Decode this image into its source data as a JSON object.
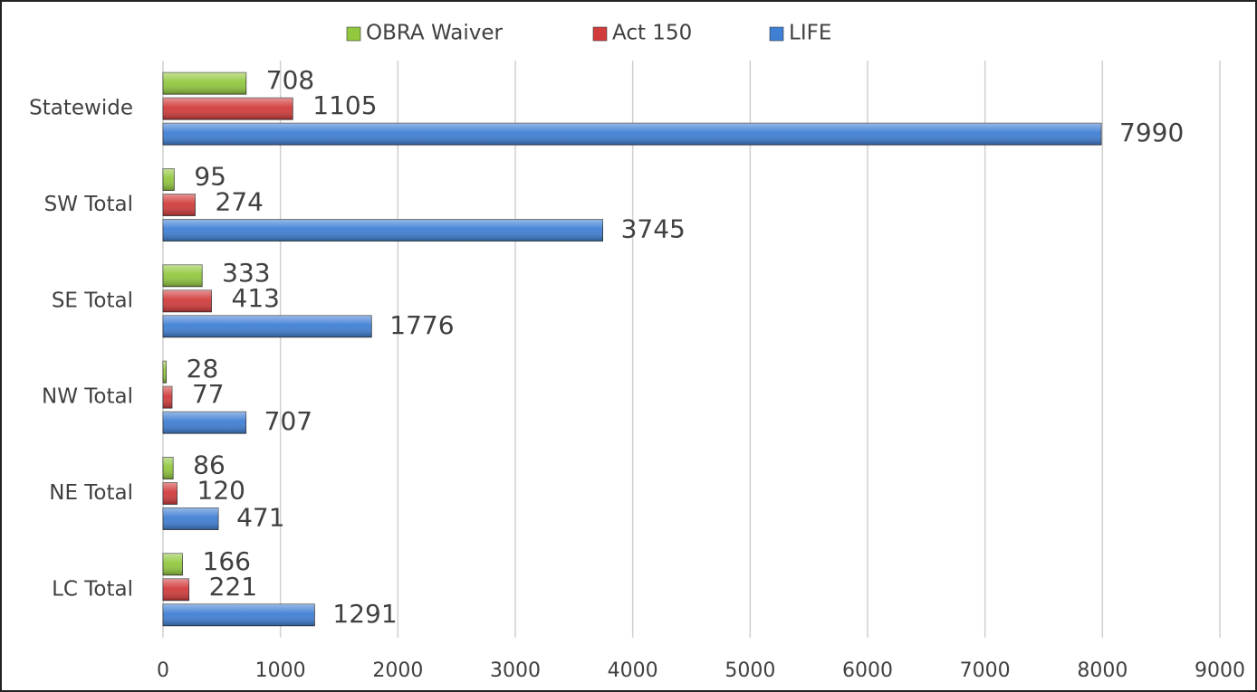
{
  "chart_data": {
    "type": "hbar",
    "categories": [
      "Statewide",
      "SW Total",
      "SE Total",
      "NW Total",
      "NE Total",
      "LC Total"
    ],
    "series": [
      {
        "name": "OBRA Waiver",
        "color": "#92c83e",
        "values": [
          708,
          95,
          333,
          28,
          86,
          166
        ]
      },
      {
        "name": "Act 150",
        "color": "#d23b3b",
        "values": [
          1105,
          274,
          413,
          77,
          120,
          221
        ]
      },
      {
        "name": "LIFE",
        "color": "#3f7fd4",
        "values": [
          7990,
          3745,
          1776,
          707,
          471,
          1291
        ]
      }
    ],
    "xlim": [
      0,
      9000
    ],
    "xticks": [
      0,
      1000,
      2000,
      3000,
      4000,
      5000,
      6000,
      7000,
      8000,
      9000
    ],
    "grid": true,
    "legend": "top"
  }
}
